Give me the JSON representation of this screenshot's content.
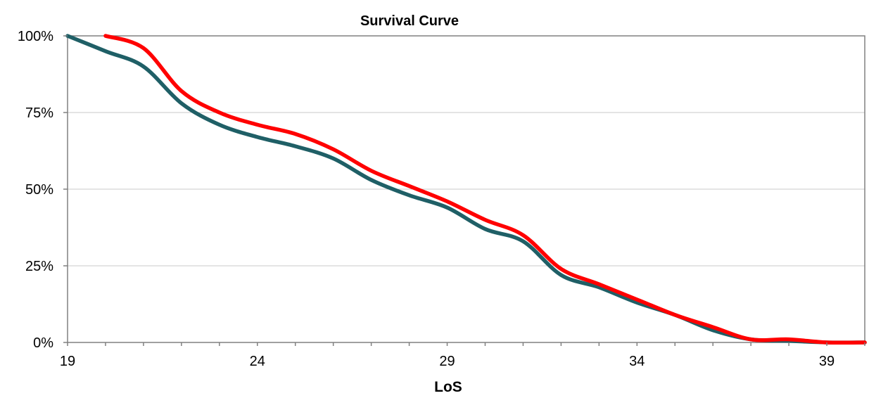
{
  "chart_data": {
    "type": "line",
    "title": "Survival Curve",
    "xlabel": "LoS",
    "ylabel": "",
    "xlim": [
      19,
      40
    ],
    "ylim": [
      0,
      1
    ],
    "x_ticks": [
      19,
      24,
      29,
      34,
      39
    ],
    "y_ticks": [
      {
        "value": 0,
        "label": "0%"
      },
      {
        "value": 0.25,
        "label": "25%"
      },
      {
        "value": 0.5,
        "label": "50%"
      },
      {
        "value": 0.75,
        "label": "75%"
      },
      {
        "value": 1,
        "label": "100%"
      }
    ],
    "grid": "horizontal",
    "series": [
      {
        "color": "#1f5f66",
        "points": [
          [
            19,
            1.0
          ],
          [
            20,
            0.95
          ],
          [
            21,
            0.9
          ],
          [
            22,
            0.78
          ],
          [
            23,
            0.71
          ],
          [
            24,
            0.67
          ],
          [
            25,
            0.64
          ],
          [
            26,
            0.6
          ],
          [
            27,
            0.53
          ],
          [
            28,
            0.48
          ],
          [
            29,
            0.44
          ],
          [
            30,
            0.37
          ],
          [
            31,
            0.33
          ],
          [
            32,
            0.22
          ],
          [
            33,
            0.18
          ],
          [
            34,
            0.13
          ],
          [
            35,
            0.09
          ],
          [
            36,
            0.04
          ],
          [
            37,
            0.01
          ],
          [
            38,
            0.005
          ],
          [
            39,
            0.0
          ],
          [
            40,
            0.0
          ]
        ]
      },
      {
        "color": "#ff0000",
        "points": [
          [
            20,
            1.0
          ],
          [
            21,
            0.96
          ],
          [
            22,
            0.82
          ],
          [
            23,
            0.75
          ],
          [
            24,
            0.71
          ],
          [
            25,
            0.68
          ],
          [
            26,
            0.63
          ],
          [
            27,
            0.56
          ],
          [
            28,
            0.51
          ],
          [
            29,
            0.46
          ],
          [
            30,
            0.4
          ],
          [
            31,
            0.35
          ],
          [
            32,
            0.24
          ],
          [
            33,
            0.19
          ],
          [
            34,
            0.14
          ],
          [
            35,
            0.09
          ],
          [
            36,
            0.05
          ],
          [
            37,
            0.01
          ],
          [
            38,
            0.01
          ],
          [
            39,
            0.0
          ],
          [
            40,
            0.0
          ]
        ]
      }
    ]
  }
}
